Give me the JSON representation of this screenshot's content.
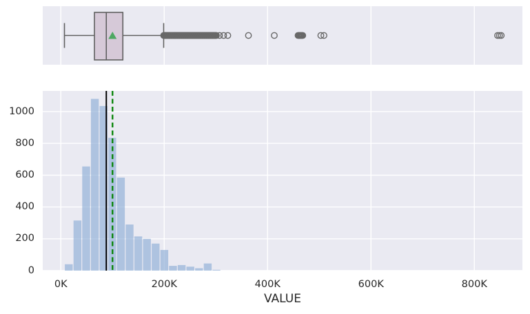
{
  "figure": {
    "background": "#ffffff",
    "axes_background": "#eaeaf2",
    "grid_color": "#ffffff",
    "grid": true,
    "text_color": "#262626"
  },
  "axis": {
    "xlabel": "VALUE",
    "x_unit": "K (thousands)",
    "xtick_values": [
      0,
      200,
      400,
      600,
      800
    ],
    "xtick_labels": [
      "0K",
      "200K",
      "400K",
      "600K",
      "800K"
    ],
    "ytick_values": [
      0,
      200,
      400,
      600,
      800,
      1000
    ],
    "ytick_labels": [
      "0",
      "200",
      "400",
      "600",
      "800",
      "1000"
    ]
  },
  "chart_data": [
    {
      "type": "box",
      "orientation": "horizontal",
      "variable": "VALUE",
      "units_of_values": "thousands (K)",
      "xlim": [
        -35,
        893
      ],
      "stats": {
        "whisker_low": 7,
        "q1": 65,
        "median": 88,
        "q3": 120,
        "whisker_high": 199,
        "mean": 100
      },
      "outlier_clusters": [
        {
          "from": 199,
          "to": 301,
          "step": 1
        },
        {
          "from": 459,
          "to": 469,
          "step": 1.5
        },
        {
          "from": 845,
          "to": 852,
          "step": 3.5
        }
      ],
      "outliers": [
        307,
        315,
        323,
        363,
        413,
        503,
        509
      ],
      "style": {
        "box_fill": "#d6c9d8",
        "line_color": "#5f5f5f",
        "mean_marker": "triangle",
        "mean_marker_color": "#4da862",
        "outlier_marker": "circle-open",
        "outlier_color": "#686868"
      }
    },
    {
      "type": "histogram",
      "variable": "VALUE",
      "units_of_values": "thousands (K)",
      "xlim": [
        -35,
        893
      ],
      "ylim": [
        0,
        1130
      ],
      "bin_start": 7,
      "bin_width": 16.8,
      "counts": [
        40,
        315,
        655,
        1080,
        1035,
        835,
        585,
        290,
        215,
        200,
        170,
        130,
        30,
        35,
        25,
        15,
        45,
        5
      ],
      "median_value": 88,
      "mean_value": 100,
      "style": {
        "bar_fill": "#8eaed5",
        "bar_opacity": 0.65,
        "median_line_color": "#000000",
        "mean_line_color": "#0a850a",
        "mean_line_dash": "dashed"
      }
    }
  ]
}
